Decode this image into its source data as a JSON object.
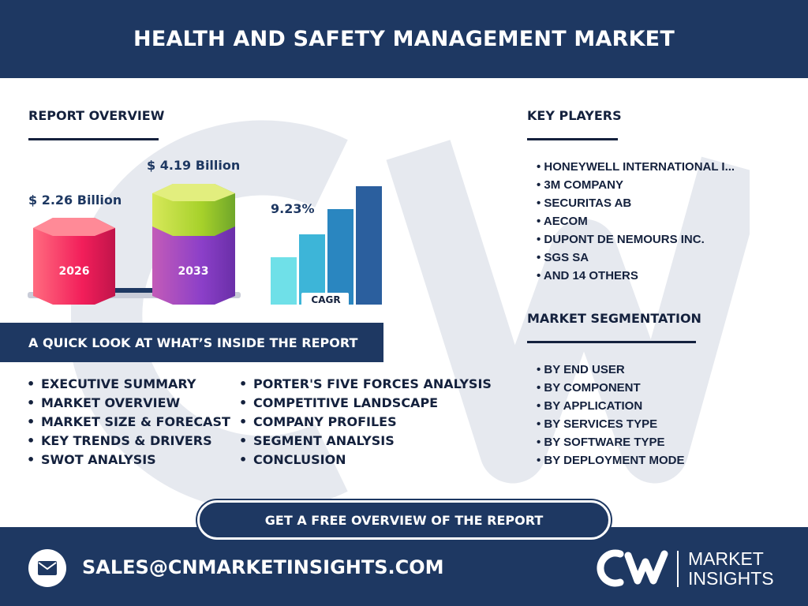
{
  "header": {
    "title": "HEALTH AND SAFETY MANAGEMENT MARKET"
  },
  "overview": {
    "title": "REPORT OVERVIEW",
    "value_2026": "$ 2.26 Billion",
    "value_2033": "$ 4.19 Billion",
    "year_2026": "2026",
    "year_2033": "2033",
    "cagr_value": "9.23%",
    "cagr_label": "CAGR"
  },
  "chart_data": {
    "type": "bar",
    "categories": [
      "2026",
      "2033"
    ],
    "values": [
      2.26,
      4.19
    ],
    "title": "",
    "cagr": "9.23%"
  },
  "quick_look": {
    "title": "A QUICK LOOK AT WHAT’S INSIDE THE REPORT",
    "col1": [
      "EXECUTIVE SUMMARY",
      "MARKET OVERVIEW",
      "MARKET SIZE & FORECAST",
      "KEY TRENDS & DRIVERS",
      "SWOT ANALYSIS"
    ],
    "col2": [
      "PORTER'S FIVE FORCES ANALYSIS",
      "COMPETITIVE LANDSCAPE",
      "COMPANY PROFILES",
      "SEGMENT ANALYSIS",
      "CONCLUSION"
    ]
  },
  "key_players": {
    "title": "KEY PLAYERS",
    "items": [
      "• HONEYWELL INTERNATIONAL I...",
      "• 3M COMPANY",
      "• SECURITAS AB",
      "• AECOM",
      "• DUPONT DE NEMOURS INC.",
      "• SGS SA",
      "• AND 14 OTHERS"
    ]
  },
  "segmentation": {
    "title": "MARKET SEGMENTATION",
    "items": [
      "• BY END USER",
      "• BY COMPONENT",
      "• BY APPLICATION",
      "• BY SERVICES TYPE",
      "• BY SOFTWARE TYPE",
      "• BY DEPLOYMENT MODE"
    ]
  },
  "cta": {
    "label": "GET A FREE OVERVIEW OF THE REPORT"
  },
  "footer": {
    "email": "SALES@CNMARKETINSIGHTS.COM",
    "logo_line1": "MARKET",
    "logo_line2": "INSIGHTS"
  },
  "colors": {
    "navy": "#1e3862",
    "pink": "#f21e5a",
    "purple": "#8b3fc8",
    "lime": "#a6d12a",
    "cyan_light": "#6fe0e8",
    "cyan": "#3db5d8",
    "blue": "#2a86c0",
    "blue_dark": "#2b5f9e"
  },
  "icons": {
    "mail": "mail-icon",
    "logo": "cn-logo-icon"
  }
}
